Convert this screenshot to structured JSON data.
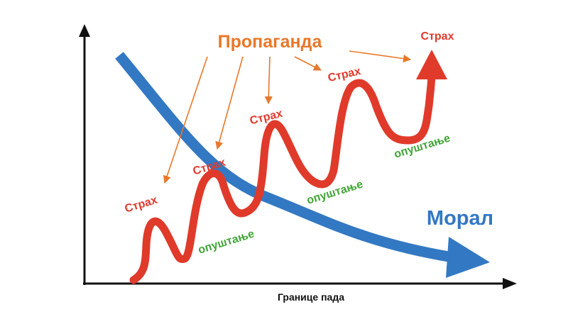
{
  "title": "Пропаганда",
  "moral_label": "Морал",
  "x_axis_label": "Границе пада",
  "fear_labels": [
    "Страх",
    "Страх",
    "Страх",
    "Страх",
    "Страх"
  ],
  "relax_labels": [
    "опуштање",
    "опуштање",
    "опуштање"
  ],
  "colors": {
    "propaganda": "#E8782A",
    "fear_wave": "#E03A2B",
    "moral_curve": "#3378C2",
    "relaxation": "#3FA535",
    "axes": "#111111"
  }
}
